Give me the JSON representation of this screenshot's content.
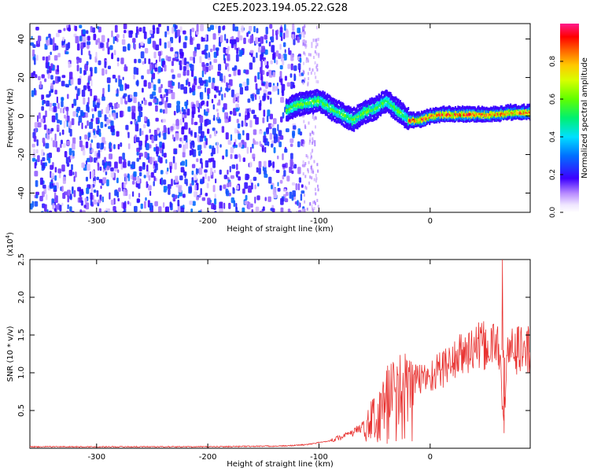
{
  "title": "C2E5.2023.194.05.22.G28",
  "chart_data": [
    {
      "type": "heatmap",
      "xlabel": "Height of straight line (km)",
      "ylabel": "Frequency (Hz)",
      "xlim": [
        -360,
        90
      ],
      "ylim": [
        -50,
        48
      ],
      "x_ticks": [
        -300,
        -200,
        -100,
        0
      ],
      "y_ticks": [
        -40,
        -20,
        0,
        20,
        40
      ],
      "colorbar": {
        "label": "Normalized spectral amplitude",
        "range": [
          0,
          1
        ],
        "ticks": [
          0.0,
          0.2,
          0.4,
          0.6,
          0.8
        ],
        "colors": [
          "#f0e6ff",
          "#c89bff",
          "#8a2be2",
          "#4b00ff",
          "#0050ff",
          "#00c8ff",
          "#00e676",
          "#7cff00",
          "#ffd000",
          "#ff6a00",
          "#ff0000",
          "#ff1493"
        ]
      },
      "noise_region": {
        "x": [
          -360,
          -115
        ],
        "y": [
          -50,
          48
        ],
        "amplitude": [
          0.05,
          0.3
        ]
      },
      "signal_ridge": [
        {
          "x": -130,
          "y": 3
        },
        {
          "x": -120,
          "y": 6
        },
        {
          "x": -110,
          "y": 7
        },
        {
          "x": -100,
          "y": 8
        },
        {
          "x": -90,
          "y": 4
        },
        {
          "x": -80,
          "y": 1
        },
        {
          "x": -70,
          "y": -2
        },
        {
          "x": -60,
          "y": 2
        },
        {
          "x": -50,
          "y": 4
        },
        {
          "x": -40,
          "y": 8
        },
        {
          "x": -30,
          "y": 3
        },
        {
          "x": -20,
          "y": -2
        },
        {
          "x": -10,
          "y": -2
        },
        {
          "x": 0,
          "y": 0
        },
        {
          "x": 10,
          "y": 1
        },
        {
          "x": 20,
          "y": 1
        },
        {
          "x": 40,
          "y": 1
        },
        {
          "x": 60,
          "y": 1
        },
        {
          "x": 70,
          "y": 2
        },
        {
          "x": 90,
          "y": 2
        }
      ]
    },
    {
      "type": "line",
      "xlabel": "Height of straight line (km)",
      "ylabel": "SNR (10 * v/v)",
      "scale_label": "(x10",
      "scale_exp": "4",
      "scale_close": ")",
      "xlim": [
        -360,
        90
      ],
      "ylim": [
        0,
        2.5
      ],
      "x_ticks": [
        -300,
        -200,
        -100,
        0
      ],
      "y_ticks": [
        0.5,
        1.0,
        1.5,
        2.0,
        2.5
      ],
      "color": "#e8312f",
      "envelope": [
        {
          "x": -360,
          "y": 0.02
        },
        {
          "x": -200,
          "y": 0.02
        },
        {
          "x": -130,
          "y": 0.03
        },
        {
          "x": -110,
          "y": 0.05
        },
        {
          "x": -90,
          "y": 0.1
        },
        {
          "x": -70,
          "y": 0.2
        },
        {
          "x": -55,
          "y": 0.35
        },
        {
          "x": -45,
          "y": 0.55
        },
        {
          "x": -35,
          "y": 0.75
        },
        {
          "x": -25,
          "y": 0.8
        },
        {
          "x": -15,
          "y": 0.9
        },
        {
          "x": 0,
          "y": 0.95
        },
        {
          "x": 10,
          "y": 1.05
        },
        {
          "x": 20,
          "y": 1.15
        },
        {
          "x": 30,
          "y": 1.25
        },
        {
          "x": 40,
          "y": 1.33
        },
        {
          "x": 50,
          "y": 1.35
        },
        {
          "x": 58,
          "y": 1.36
        },
        {
          "x": 62,
          "y": 1.4
        },
        {
          "x": 66,
          "y": 0.3
        },
        {
          "x": 70,
          "y": 1.3
        },
        {
          "x": 80,
          "y": 1.3
        },
        {
          "x": 90,
          "y": 1.3
        }
      ],
      "peaks": [
        {
          "x": 65,
          "y": 2.5
        },
        {
          "x": 66.5,
          "y": 0.2
        }
      ]
    }
  ]
}
